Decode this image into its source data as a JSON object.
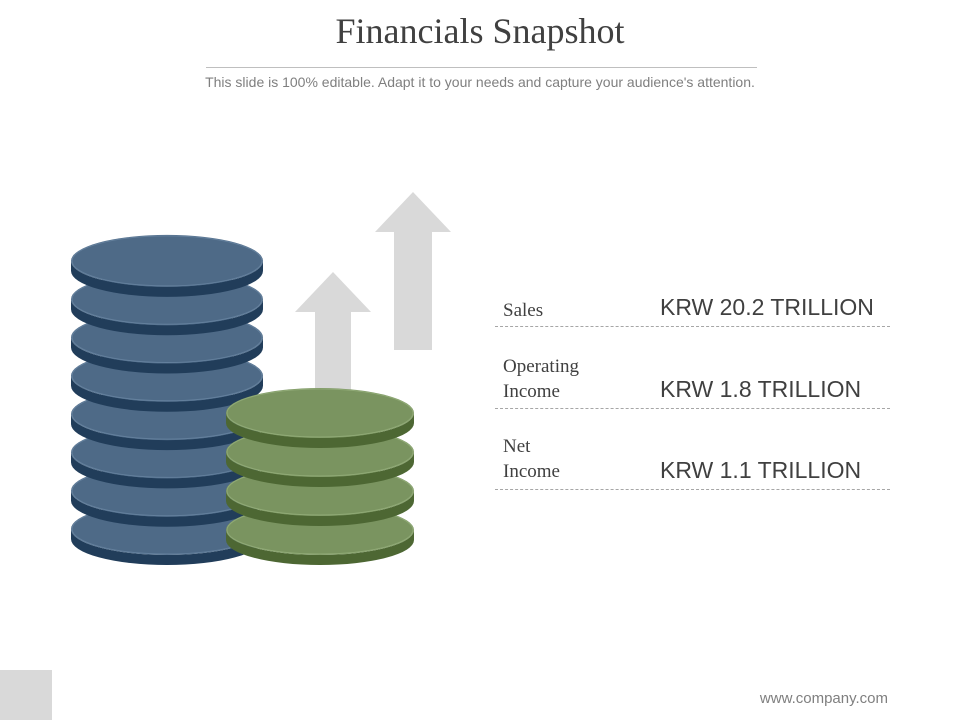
{
  "slide": {
    "title": "Financials Snapshot",
    "subtitle": "This slide is 100% editable. Adapt it to your needs and capture your audience's attention.",
    "footer": "www.company.com"
  },
  "metrics": [
    {
      "label_lines": [
        "Sales"
      ],
      "value": "KRW 20.2 TRILLION"
    },
    {
      "label_lines": [
        "Operating",
        "Income"
      ],
      "value": "KRW 1.8 TRILLION"
    },
    {
      "label_lines": [
        "Net",
        "Income"
      ],
      "value": "KRW 1.1 TRILLION"
    }
  ],
  "colors": {
    "blue_coin": "#4e6a87",
    "green_coin": "#7a9460",
    "arrow": "#d9d9d9",
    "text": "#404040"
  }
}
